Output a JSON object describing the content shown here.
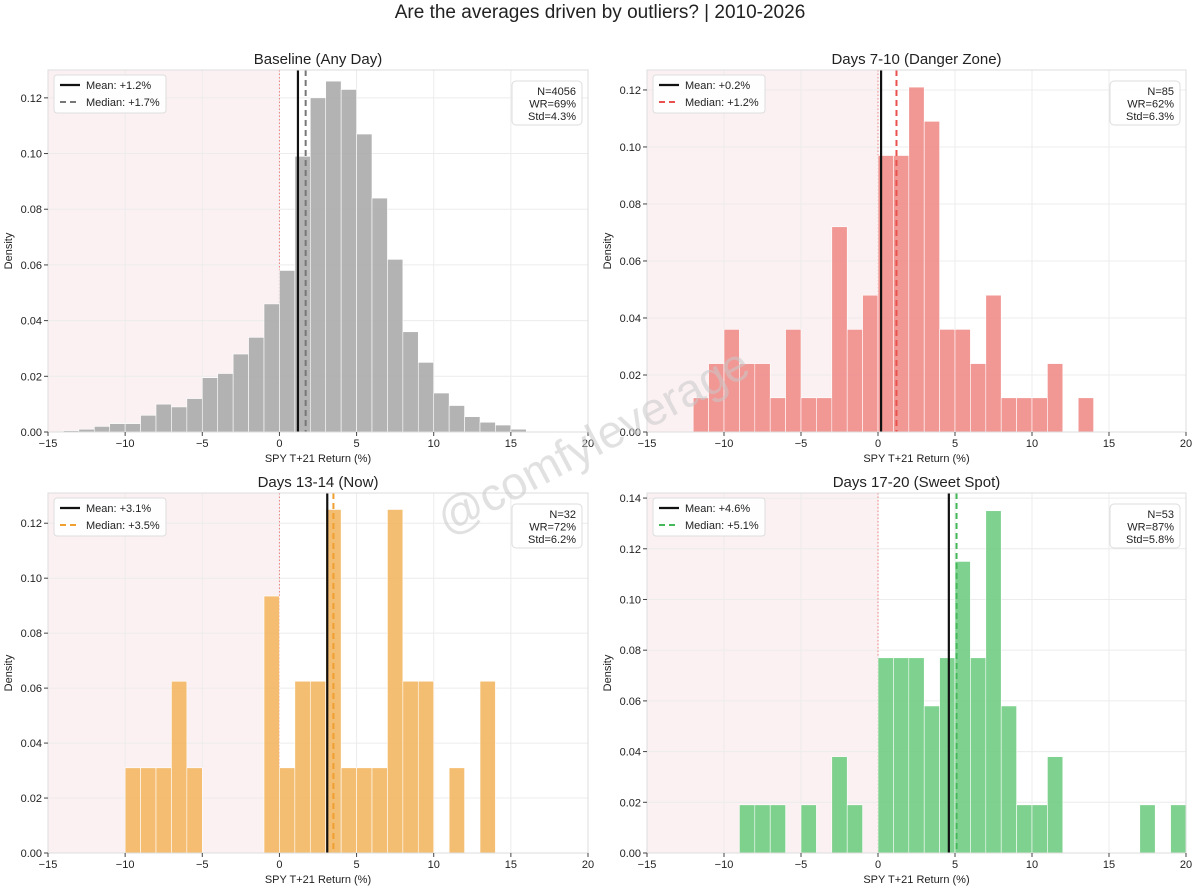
{
  "suptitle": "Are the averages driven by outliers? | 2010-2026",
  "watermark": "@comfyleverage",
  "colors": {
    "negative_region": "#fbf1f2",
    "zero_line": "#f08080",
    "mean_line": "#111111",
    "grid": "#ececec",
    "frame": "#dddddd"
  },
  "chart_data": [
    {
      "type": "bar",
      "title": "Baseline (Any Day)",
      "xlabel": "SPY T+21 Return (%)",
      "ylabel": "Density",
      "xlim": [
        -15,
        20
      ],
      "ylim": [
        0,
        0.13
      ],
      "xticks": [
        -15,
        -10,
        -5,
        0,
        5,
        10,
        15,
        20
      ],
      "xtick_labels": [
        "−15",
        "−10",
        "−5",
        "0",
        "5",
        "10",
        "15",
        "20"
      ],
      "yticks": [
        0,
        0.02,
        0.04,
        0.06,
        0.08,
        0.1,
        0.12
      ],
      "ytick_labels": [
        "0.00",
        "0.02",
        "0.04",
        "0.06",
        "0.08",
        "0.10",
        "0.12"
      ],
      "color": "#a9a9a9",
      "median_color": "#777777",
      "bin_width": 1,
      "bin_start": [
        -14,
        -13,
        -12,
        -11,
        -10,
        -9,
        -8,
        -7,
        -6,
        -5,
        -4,
        -3,
        -2,
        -1,
        0,
        1,
        2,
        3,
        4,
        5,
        6,
        7,
        8,
        9,
        10,
        11,
        12,
        13,
        14,
        15
      ],
      "values": [
        0.0005,
        0.001,
        0.002,
        0.003,
        0.003,
        0.006,
        0.01,
        0.009,
        0.012,
        0.0195,
        0.021,
        0.028,
        0.034,
        0.046,
        0.058,
        0.099,
        0.12,
        0.126,
        0.123,
        0.107,
        0.084,
        0.062,
        0.036,
        0.025,
        0.014,
        0.0095,
        0.0055,
        0.0035,
        0.0025,
        0.001
      ],
      "mean": 1.2,
      "median": 1.7,
      "legend": [
        "Mean: +1.2%",
        "Median: +1.7%"
      ],
      "stats": [
        "N=4056",
        "WR=69%",
        "Std=4.3%"
      ]
    },
    {
      "type": "bar",
      "title": "Days 7-10 (Danger Zone)",
      "xlabel": "SPY T+21 Return (%)",
      "ylabel": "Density",
      "xlim": [
        -15,
        20
      ],
      "ylim": [
        0,
        0.127
      ],
      "xticks": [
        -15,
        -10,
        -5,
        0,
        5,
        10,
        15,
        20
      ],
      "xtick_labels": [
        "−15",
        "−10",
        "−5",
        "0",
        "5",
        "10",
        "15",
        "20"
      ],
      "yticks": [
        0,
        0.02,
        0.04,
        0.06,
        0.08,
        0.1,
        0.12
      ],
      "ytick_labels": [
        "0.00",
        "0.02",
        "0.04",
        "0.06",
        "0.08",
        "0.10",
        "0.12"
      ],
      "color": "#ef8a86",
      "median_color": "#e8514e",
      "bin_width": 1,
      "bin_start": [
        -12,
        -11,
        -10,
        -9,
        -8,
        -7,
        -6,
        -5,
        -4,
        -3,
        -2,
        -1,
        0,
        1,
        2,
        3,
        4,
        5,
        6,
        7,
        8,
        9,
        10,
        11,
        12,
        13
      ],
      "values": [
        0.012,
        0.024,
        0.036,
        0.024,
        0.024,
        0.012,
        0.036,
        0.012,
        0.012,
        0.072,
        0.036,
        0.048,
        0.097,
        0.097,
        0.121,
        0.109,
        0.036,
        0.036,
        0.024,
        0.048,
        0.012,
        0.012,
        0.012,
        0.024,
        0.0,
        0.012
      ],
      "mean": 0.2,
      "median": 1.2,
      "legend": [
        "Mean: +0.2%",
        "Median: +1.2%"
      ],
      "stats": [
        "N=85",
        "WR=62%",
        "Std=6.3%"
      ]
    },
    {
      "type": "bar",
      "title": "Days 13-14 (Now)",
      "xlabel": "SPY T+21 Return (%)",
      "ylabel": "Density",
      "xlim": [
        -15,
        20
      ],
      "ylim": [
        0,
        0.131
      ],
      "xticks": [
        -15,
        -10,
        -5,
        0,
        5,
        10,
        15,
        20
      ],
      "xtick_labels": [
        "−15",
        "−10",
        "−5",
        "0",
        "5",
        "10",
        "15",
        "20"
      ],
      "yticks": [
        0,
        0.02,
        0.04,
        0.06,
        0.08,
        0.1,
        0.12
      ],
      "ytick_labels": [
        "0.00",
        "0.02",
        "0.04",
        "0.06",
        "0.08",
        "0.10",
        "0.12"
      ],
      "color": "#f2b55e",
      "median_color": "#f0a030",
      "bin_width": 1,
      "bin_start": [
        -10,
        -9,
        -8,
        -7,
        -6,
        -5,
        -4,
        -3,
        -2,
        -1,
        0,
        1,
        2,
        3,
        4,
        5,
        6,
        7,
        8,
        9,
        10,
        11,
        12,
        13
      ],
      "values": [
        0.031,
        0.031,
        0.031,
        0.0625,
        0.031,
        0.0,
        0.0,
        0.0,
        0.0,
        0.0935,
        0.031,
        0.0625,
        0.0625,
        0.125,
        0.031,
        0.031,
        0.031,
        0.125,
        0.0625,
        0.0625,
        0.0,
        0.031,
        0.0,
        0.0625
      ],
      "mean": 3.1,
      "median": 3.5,
      "legend": [
        "Mean: +3.1%",
        "Median: +3.5%"
      ],
      "stats": [
        "N=32",
        "WR=72%",
        "Std=6.2%"
      ]
    },
    {
      "type": "bar",
      "title": "Days 17-20 (Sweet Spot)",
      "xlabel": "SPY T+21 Return (%)",
      "ylabel": "Density",
      "xlim": [
        -15,
        20
      ],
      "ylim": [
        0,
        0.142
      ],
      "xticks": [
        -15,
        -10,
        -5,
        0,
        5,
        10,
        15,
        20
      ],
      "xtick_labels": [
        "−15",
        "−10",
        "−5",
        "0",
        "5",
        "10",
        "15",
        "20"
      ],
      "yticks": [
        0,
        0.02,
        0.04,
        0.06,
        0.08,
        0.1,
        0.12,
        0.14
      ],
      "ytick_labels": [
        "0.00",
        "0.02",
        "0.04",
        "0.06",
        "0.08",
        "0.10",
        "0.12",
        "0.14"
      ],
      "color": "#6ccb7e",
      "median_color": "#45b95a",
      "bin_width": 1,
      "bin_start": [
        -9,
        -8,
        -7,
        -6,
        -5,
        -4,
        -3,
        -2,
        -1,
        0,
        1,
        2,
        3,
        4,
        5,
        6,
        7,
        8,
        9,
        10,
        11,
        12,
        13,
        14,
        15,
        16,
        17,
        18,
        19
      ],
      "values": [
        0.019,
        0.019,
        0.019,
        0.0,
        0.019,
        0.0,
        0.038,
        0.019,
        0.0,
        0.077,
        0.077,
        0.077,
        0.058,
        0.077,
        0.115,
        0.077,
        0.135,
        0.058,
        0.019,
        0.019,
        0.038,
        0.0,
        0.0,
        0.0,
        0.0,
        0.0,
        0.019,
        0.0,
        0.019
      ],
      "mean": 4.6,
      "median": 5.1,
      "legend": [
        "Mean: +4.6%",
        "Median: +5.1%"
      ],
      "stats": [
        "N=53",
        "WR=87%",
        "Std=5.8%"
      ]
    }
  ]
}
